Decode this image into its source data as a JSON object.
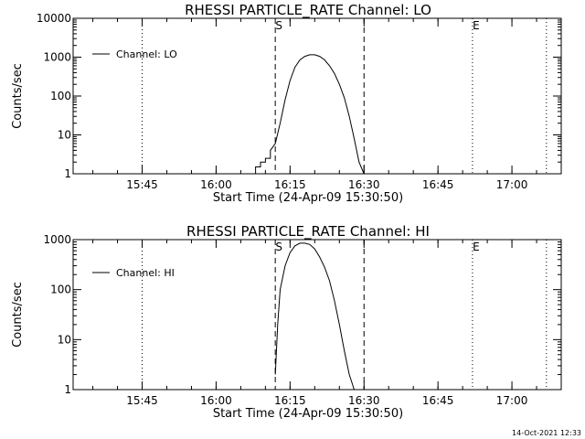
{
  "footer": {
    "timestamp": "14-Oct-2021 12:33"
  },
  "chart_data": [
    {
      "type": "line",
      "title": "RHESSI PARTICLE_RATE Channel: LO",
      "xlabel": "Start Time (24-Apr-09 15:30:50)",
      "ylabel": "Counts/sec",
      "yscale": "log",
      "ylim": [
        1,
        10000
      ],
      "yticks": [
        1,
        10,
        100,
        1000,
        10000
      ],
      "ytick_labels": [
        "1",
        "10",
        "100",
        "1000",
        "10000"
      ],
      "xlim": [
        "15:31",
        "17:10"
      ],
      "xticks": [
        "15:45",
        "16:00",
        "16:15",
        "16:30",
        "16:45",
        "17:00"
      ],
      "legend": {
        "position": "top-left",
        "entries": [
          "Channel: LO"
        ]
      },
      "markers": [
        {
          "time": "16:12",
          "label": "S",
          "style": "dashed"
        },
        {
          "time": "16:30",
          "label": "",
          "style": "dashed"
        },
        {
          "time": "16:52",
          "label": "E",
          "style": "dotted"
        },
        {
          "time": "15:45",
          "label": "",
          "style": "dotted"
        },
        {
          "time": "17:07",
          "label": "",
          "style": "dotted"
        }
      ],
      "series": [
        {
          "name": "Channel: LO",
          "x": [
            "16:08",
            "16:08",
            "16:09",
            "16:09",
            "16:10",
            "16:10",
            "16:11",
            "16:11",
            "16:12",
            "16:13",
            "16:14",
            "16:15",
            "16:16",
            "16:17",
            "16:18",
            "16:19",
            "16:20",
            "16:21",
            "16:22",
            "16:23",
            "16:24",
            "16:25",
            "16:26",
            "16:27",
            "16:28",
            "16:29",
            "16:30"
          ],
          "values": [
            1,
            1.5,
            1.5,
            2,
            2,
            2.5,
            2.5,
            4,
            6,
            20,
            80,
            250,
            550,
            850,
            1050,
            1150,
            1150,
            1050,
            850,
            600,
            380,
            200,
            90,
            30,
            8,
            2,
            1
          ]
        }
      ]
    },
    {
      "type": "line",
      "title": "RHESSI PARTICLE_RATE Channel: HI",
      "xlabel": "Start Time (24-Apr-09 15:30:50)",
      "ylabel": "Counts/sec",
      "yscale": "log",
      "ylim": [
        1,
        1000
      ],
      "yticks": [
        1,
        10,
        100,
        1000
      ],
      "ytick_labels": [
        "1",
        "10",
        "100",
        "1000"
      ],
      "xlim": [
        "15:31",
        "17:10"
      ],
      "xticks": [
        "15:45",
        "16:00",
        "16:15",
        "16:30",
        "16:45",
        "17:00"
      ],
      "legend": {
        "position": "top-left",
        "entries": [
          "Channel: HI"
        ]
      },
      "markers": [
        {
          "time": "16:12",
          "label": "S",
          "style": "dashed"
        },
        {
          "time": "16:30",
          "label": "",
          "style": "dashed"
        },
        {
          "time": "16:52",
          "label": "E",
          "style": "dotted"
        },
        {
          "time": "15:45",
          "label": "",
          "style": "dotted"
        },
        {
          "time": "17:07",
          "label": "",
          "style": "dotted"
        }
      ],
      "series": [
        {
          "name": "Channel: HI",
          "x": [
            "16:12",
            "16:12.5",
            "16:13",
            "16:14",
            "16:15",
            "16:16",
            "16:17",
            "16:18",
            "16:19",
            "16:20",
            "16:21",
            "16:22",
            "16:23",
            "16:24",
            "16:25",
            "16:26",
            "16:27",
            "16:28"
          ],
          "values": [
            2,
            20,
            100,
            300,
            550,
            750,
            850,
            850,
            800,
            650,
            450,
            280,
            150,
            60,
            20,
            6,
            2,
            1
          ]
        }
      ]
    }
  ]
}
